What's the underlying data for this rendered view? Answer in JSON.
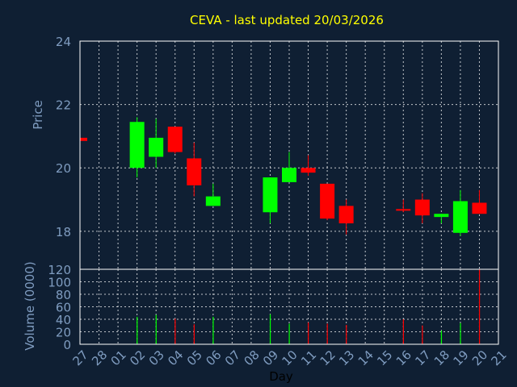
{
  "colors": {
    "background": "#0f1f33",
    "title": "#ffff00",
    "axis_text": "#7f9cc0",
    "frame": "#ffffff",
    "grid": "#ffffff",
    "up": "#00ff00",
    "down": "#ff0000"
  },
  "chart_data": [
    {
      "type": "candlestick",
      "title": "CEVA - last updated 20/03/2026",
      "ylabel": "Price",
      "ylim": [
        16.8,
        24
      ],
      "y_ticks": [
        "24",
        "22",
        "20",
        "18"
      ],
      "x_ticks": [
        "27",
        "28",
        "01",
        "02",
        "03",
        "04",
        "05",
        "06",
        "07",
        "08",
        "09",
        "10",
        "11",
        "12",
        "13",
        "14",
        "15",
        "16",
        "17",
        "18",
        "19",
        "20",
        "21"
      ],
      "grid": true,
      "candles": [
        {
          "day": "27",
          "open": 20.95,
          "high": 20.95,
          "low": 20.85,
          "close": 20.85,
          "direction": "down"
        },
        {
          "day": "02",
          "open": 20.0,
          "high": 21.6,
          "low": 19.7,
          "close": 21.45,
          "direction": "up"
        },
        {
          "day": "03",
          "open": 20.35,
          "high": 21.55,
          "low": 20.0,
          "close": 20.95,
          "direction": "up"
        },
        {
          "day": "04",
          "open": 21.3,
          "high": 21.3,
          "low": 20.45,
          "close": 20.5,
          "direction": "down"
        },
        {
          "day": "05",
          "open": 20.3,
          "high": 20.8,
          "low": 19.1,
          "close": 19.45,
          "direction": "down"
        },
        {
          "day": "06",
          "open": 18.8,
          "high": 19.5,
          "low": 18.8,
          "close": 19.1,
          "direction": "up"
        },
        {
          "day": "09",
          "open": 18.6,
          "high": 19.7,
          "low": 18.25,
          "close": 19.7,
          "direction": "up"
        },
        {
          "day": "10",
          "open": 19.55,
          "high": 20.5,
          "low": 19.55,
          "close": 20.0,
          "direction": "up"
        },
        {
          "day": "11",
          "open": 20.0,
          "high": 20.4,
          "low": 19.75,
          "close": 19.85,
          "direction": "down"
        },
        {
          "day": "12",
          "open": 19.5,
          "high": 19.5,
          "low": 18.35,
          "close": 18.4,
          "direction": "down"
        },
        {
          "day": "13",
          "open": 18.8,
          "high": 19.0,
          "low": 17.9,
          "close": 18.25,
          "direction": "down"
        },
        {
          "day": "16",
          "open": 18.7,
          "high": 19.0,
          "low": 18.6,
          "close": 18.65,
          "direction": "down"
        },
        {
          "day": "17",
          "open": 19.0,
          "high": 19.2,
          "low": 18.25,
          "close": 18.5,
          "direction": "down"
        },
        {
          "day": "18",
          "open": 18.45,
          "high": 18.55,
          "low": 18.25,
          "close": 18.55,
          "direction": "up"
        },
        {
          "day": "19",
          "open": 17.95,
          "high": 19.3,
          "low": 17.85,
          "close": 18.95,
          "direction": "up"
        },
        {
          "day": "20",
          "open": 18.9,
          "high": 19.3,
          "low": 18.55,
          "close": 18.55,
          "direction": "down"
        }
      ]
    },
    {
      "type": "bar",
      "ylabel": "Volume (0000)",
      "xlabel": "Day",
      "ylim": [
        0,
        120
      ],
      "y_ticks": [
        "120",
        "100",
        "80",
        "60",
        "40",
        "20",
        "0"
      ],
      "grid": true,
      "volume": [
        {
          "day": "02",
          "value": 44,
          "direction": "up"
        },
        {
          "day": "03",
          "value": 47,
          "direction": "up"
        },
        {
          "day": "04",
          "value": 41,
          "direction": "down"
        },
        {
          "day": "05",
          "value": 32,
          "direction": "down"
        },
        {
          "day": "06",
          "value": 44,
          "direction": "up"
        },
        {
          "day": "09",
          "value": 48,
          "direction": "up"
        },
        {
          "day": "10",
          "value": 33,
          "direction": "up"
        },
        {
          "day": "11",
          "value": 35,
          "direction": "down"
        },
        {
          "day": "12",
          "value": 33,
          "direction": "down"
        },
        {
          "day": "13",
          "value": 31,
          "direction": "down"
        },
        {
          "day": "16",
          "value": 40,
          "direction": "down"
        },
        {
          "day": "17",
          "value": 30,
          "direction": "down"
        },
        {
          "day": "18",
          "value": 22,
          "direction": "up"
        },
        {
          "day": "19",
          "value": 34,
          "direction": "up"
        },
        {
          "day": "20",
          "value": 120,
          "direction": "down"
        }
      ]
    }
  ]
}
